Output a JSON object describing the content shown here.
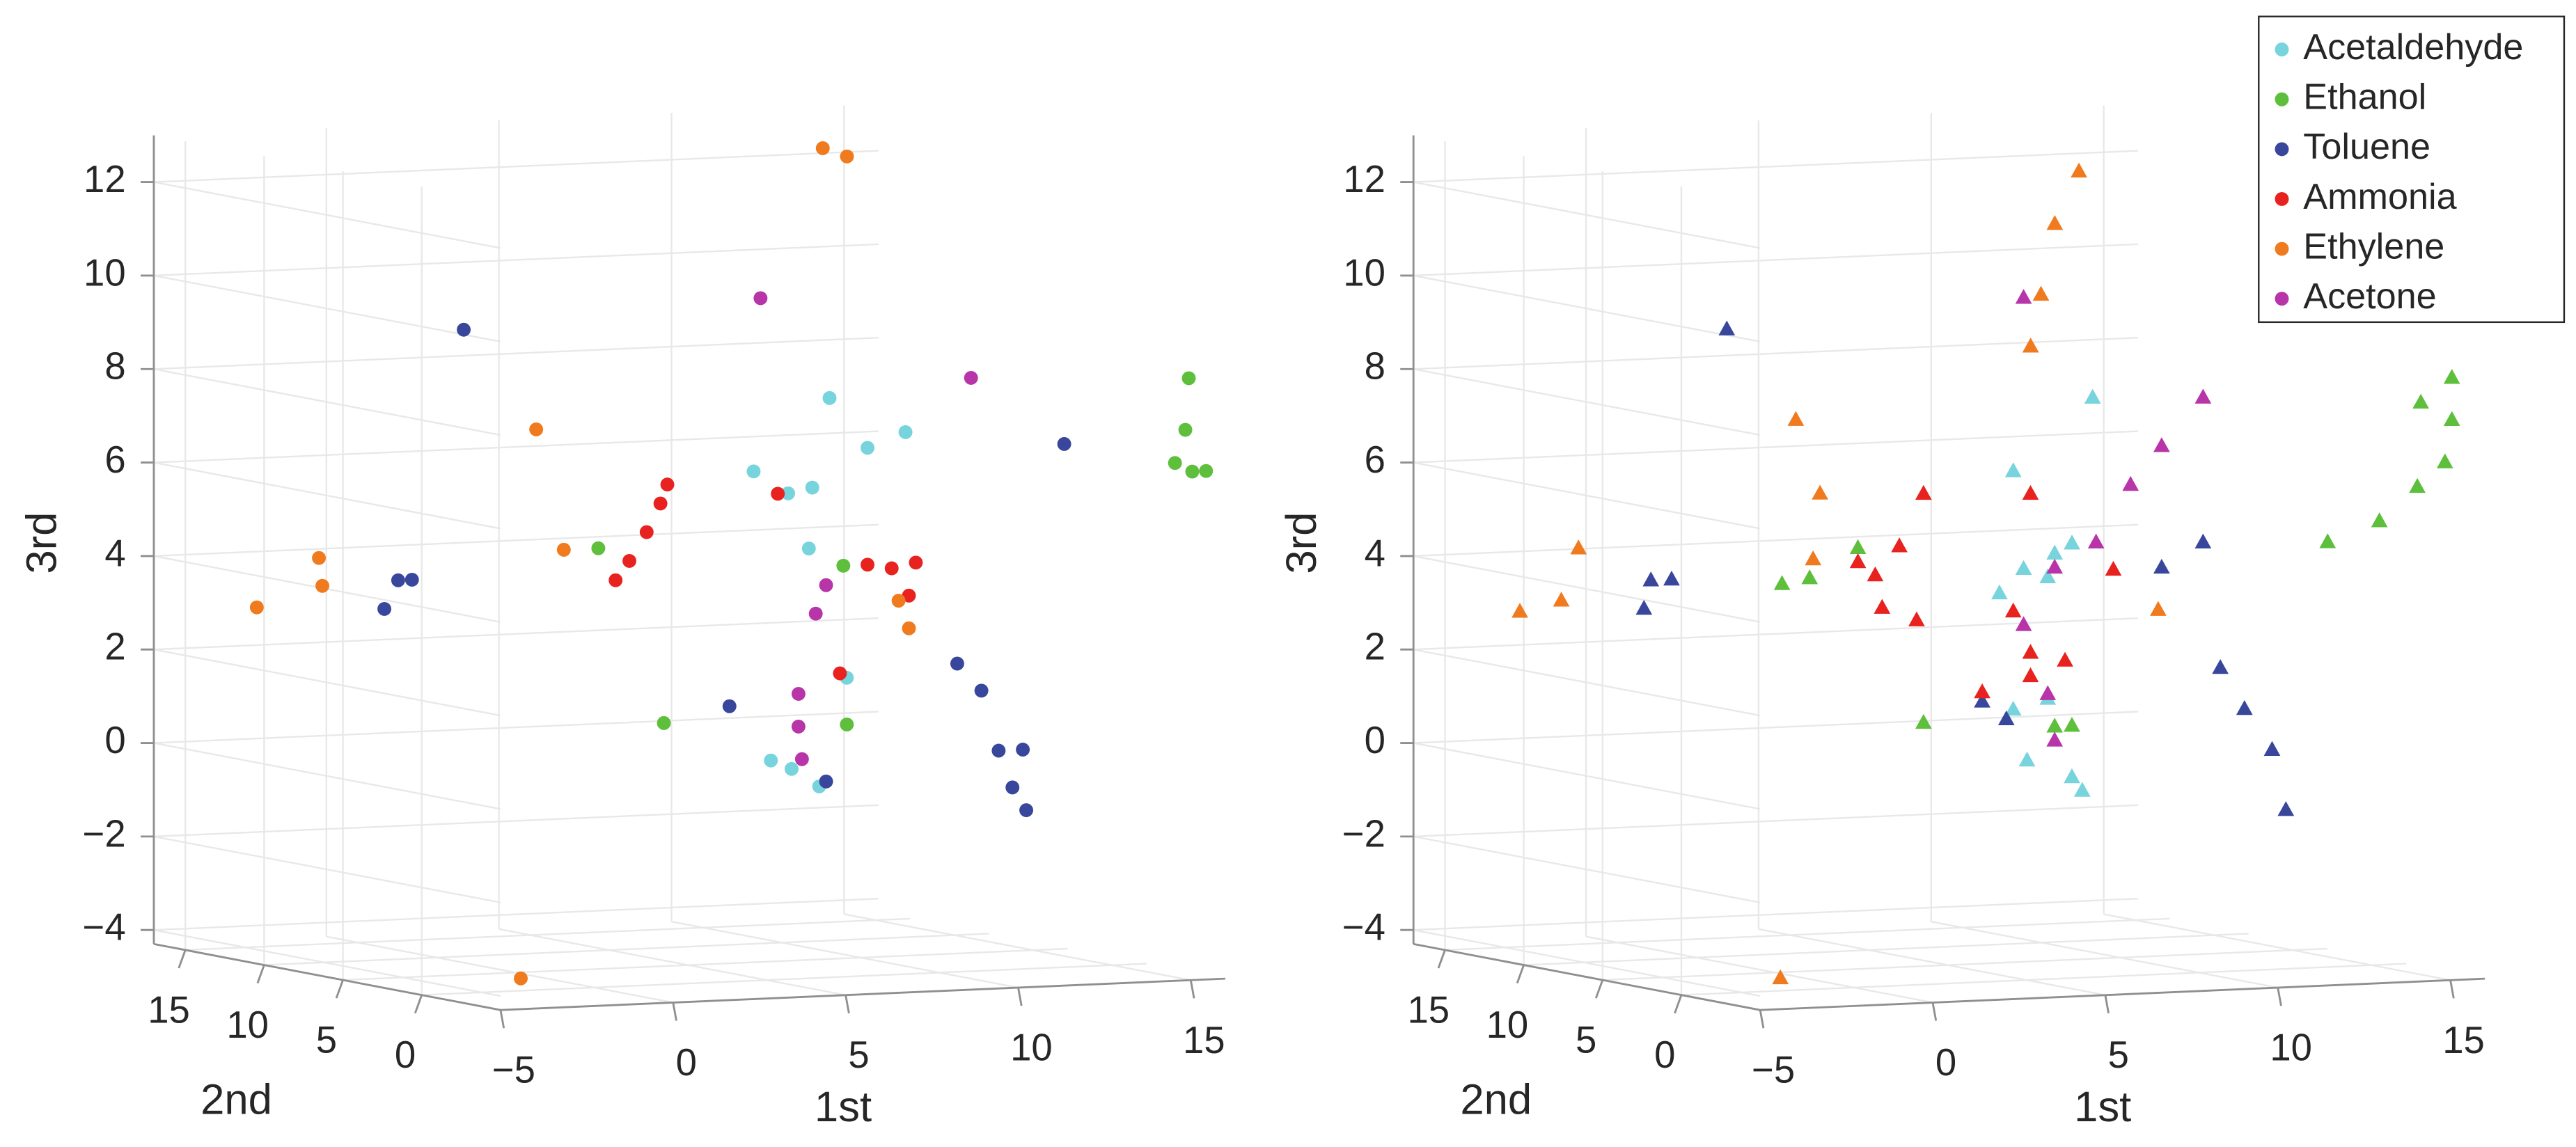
{
  "chart_data": [
    {
      "type": "scatter3d",
      "marker": "circle",
      "grid": true,
      "xlabel": "1st",
      "ylabel": "2nd",
      "zlabel": "3rd",
      "xlim": [
        -5,
        16
      ],
      "ylim": [
        -5,
        17
      ],
      "zlim": [
        -4.3,
        13
      ],
      "xticks": [
        {
          "value": -5,
          "label": "−5"
        },
        0,
        5,
        10,
        15
      ],
      "yticks": [
        0,
        5,
        10,
        15
      ],
      "zticks": [
        {
          "value": -4,
          "label": "−4"
        },
        {
          "value": -2,
          "label": "−2"
        },
        0,
        2,
        4,
        6,
        8,
        10,
        12
      ],
      "series": [
        {
          "color": "#77d3dc",
          "x": [
            9.1,
            10.2,
            11.3,
            6.9,
            7.9,
            8.6,
            8.5,
            9.6,
            7.4,
            8.0,
            8.8
          ],
          "y": [
            5,
            5,
            5,
            5,
            5,
            5,
            5,
            5,
            5,
            5,
            5
          ],
          "z": [
            7.7,
            6.6,
            6.9,
            6.2,
            5.7,
            5.8,
            4.5,
            1.7,
            0.0,
            -0.2,
            -0.6
          ]
        },
        {
          "color": "#5dbf3b",
          "x": [
            15.4,
            15.3,
            15.5,
            15.9,
            15.0,
            2.4,
            9.5,
            9.6,
            4.3
          ],
          "y": [
            -4,
            -4,
            -4,
            -4,
            -4,
            5,
            5,
            5,
            5
          ],
          "z": [
            8.5,
            7.4,
            6.5,
            6.5,
            6.7,
            4.7,
            4.1,
            0.7,
            0.9
          ]
        },
        {
          "color": "#38479c",
          "x": [
            -1.5,
            -3.4,
            -3.0,
            -3.8,
            6.2,
            12.8,
            13.5,
            14.0,
            14.7,
            14.4,
            14.8,
            15.9,
            9.0
          ],
          "y": [
            5,
            5,
            5,
            5,
            5,
            5,
            5,
            5,
            5,
            5,
            5,
            5,
            5
          ],
          "z": [
            9.5,
            4.2,
            4.2,
            3.6,
            1.2,
            1.9,
            1.3,
            0.0,
            0.0,
            -0.8,
            -1.3,
            6.5,
            -0.5
          ]
        },
        {
          "color": "#e8231f",
          "x": [
            2.9,
            3.3,
            3.8,
            4.2,
            4.4,
            7.6,
            10.2,
            10.9,
            11.4,
            11.6,
            9.4
          ],
          "y": [
            5,
            5,
            5,
            5,
            5,
            5,
            5,
            5,
            5,
            5,
            5
          ],
          "z": [
            4.0,
            4.4,
            5.0,
            5.6,
            6.0,
            5.7,
            4.1,
            4.0,
            3.4,
            4.1,
            1.8
          ]
        },
        {
          "color": "#f07a1e",
          "x": [
            12.1,
            12.8,
            0.6,
            -2.5,
            -2.4,
            -4.3,
            1.4,
            11.1,
            11.4,
            -3.5
          ],
          "y": [
            12,
            12,
            5,
            12,
            12,
            12,
            5,
            5,
            5,
            -3
          ],
          "z": [
            12.5,
            12.3,
            7.3,
            4.2,
            3.6,
            3.2,
            4.7,
            3.3,
            2.7,
            -3.8
          ]
        },
        {
          "color": "#b834a9",
          "x": [
            7.1,
            13.2,
            8.2,
            8.2,
            8.3,
            9.0,
            8.7
          ],
          "y": [
            5,
            5,
            5,
            5,
            5,
            5,
            5
          ],
          "z": [
            9.9,
            8.0,
            1.4,
            0.7,
            0.0,
            3.7,
            3.1
          ]
        }
      ]
    },
    {
      "type": "scatter3d",
      "marker": "triangle",
      "grid": true,
      "legend": "upper right",
      "xlabel": "1st",
      "ylabel": "2nd",
      "zlabel": "3rd",
      "xlim": [
        -5,
        16
      ],
      "ylim": [
        -5,
        17
      ],
      "zlim": [
        -4.3,
        13
      ],
      "xticks": [
        {
          "value": -5,
          "label": "−5"
        },
        0,
        5,
        10,
        15
      ],
      "yticks": [
        0,
        5,
        10,
        15
      ],
      "zticks": [
        {
          "value": -4,
          "label": "−4"
        },
        {
          "value": -2,
          "label": "−2"
        },
        0,
        2,
        4,
        6,
        8,
        10,
        12
      ],
      "series": [
        {
          "name": "Acetaldehyde",
          "color": "#77d3dc",
          "x": [
            9.2,
            6.9,
            7.2,
            8.1,
            8.6,
            7.9,
            6.5,
            6.9,
            7.9,
            7.3,
            8.6,
            8.9
          ],
          "y": [
            5,
            5,
            5,
            5,
            5,
            5,
            5,
            5,
            5,
            5,
            5,
            5
          ],
          "z": [
            7.7,
            6.2,
            4.1,
            4.4,
            4.6,
            3.9,
            3.6,
            1.1,
            1.3,
            0.0,
            -0.4,
            -0.7
          ]
        },
        {
          "name": "Ethanol",
          "color": "#5dbf3b",
          "x": [
            11.9,
            13.4,
            14.5,
            15.3,
            15.5,
            14.6,
            15.5,
            0.2,
            1.0,
            2.4,
            8.1,
            8.6,
            4.3
          ],
          "y": [
            -4,
            -4,
            -4,
            -4,
            -4,
            -4,
            -4,
            5,
            5,
            5,
            5,
            5,
            5
          ],
          "z": [
            5.1,
            5.5,
            6.2,
            6.7,
            7.6,
            8.0,
            8.5,
            4.0,
            4.1,
            4.7,
            0.7,
            0.7,
            0.9
          ]
        },
        {
          "name": "Toluene",
          "color": "#38479c",
          "x": [
            -1.4,
            -3.6,
            -3.0,
            -3.8,
            6.0,
            6.7,
            12.9,
            13.6,
            14.4,
            14.8,
            11.2,
            12.4
          ],
          "y": [
            5,
            5,
            5,
            5,
            5,
            5,
            5,
            5,
            5,
            5,
            5,
            5
          ],
          "z": [
            9.5,
            4.2,
            4.2,
            3.6,
            1.3,
            0.9,
            1.8,
            0.9,
            0.0,
            -1.3,
            4.0,
            4.5
          ]
        },
        {
          "name": "Ammonia",
          "color": "#e8231f",
          "x": [
            2.9,
            3.6,
            4.3,
            3.1,
            4.1,
            2.4,
            7.4,
            7.4,
            8.4,
            7.4,
            9.8,
            6.0,
            6.9
          ],
          "y": [
            5,
            5,
            5,
            5,
            5,
            5,
            5,
            5,
            5,
            5,
            5,
            5,
            5
          ],
          "z": [
            4.1,
            4.7,
            5.8,
            3.4,
            3.1,
            4.4,
            5.7,
            2.3,
            2.1,
            1.8,
            4.0,
            1.5,
            3.2
          ]
        },
        {
          "name": "Ethylene",
          "color": "#f07a1e",
          "x": [
            12.0,
            11.3,
            10.9,
            10.6,
            0.6,
            1.3,
            1.1,
            -2.5,
            -4.2,
            -3.0,
            11.1,
            -3.5
          ],
          "y": [
            12,
            12,
            12,
            12,
            5,
            5,
            5,
            12,
            12,
            12,
            5,
            -3
          ],
          "z": [
            12.0,
            10.9,
            9.4,
            8.3,
            7.5,
            5.9,
            4.5,
            4.4,
            3.1,
            3.3,
            3.1,
            -3.8
          ]
        },
        {
          "name": "Acetone",
          "color": "#b834a9",
          "x": [
            7.2,
            12.4,
            11.2,
            10.3,
            8.1,
            9.3,
            8.1,
            7.9,
            7.2
          ],
          "y": [
            5,
            5,
            5,
            5,
            5,
            5,
            5,
            5,
            5
          ],
          "z": [
            9.9,
            7.6,
            6.6,
            5.8,
            4.1,
            4.6,
            0.4,
            1.4,
            2.9
          ]
        }
      ]
    }
  ]
}
